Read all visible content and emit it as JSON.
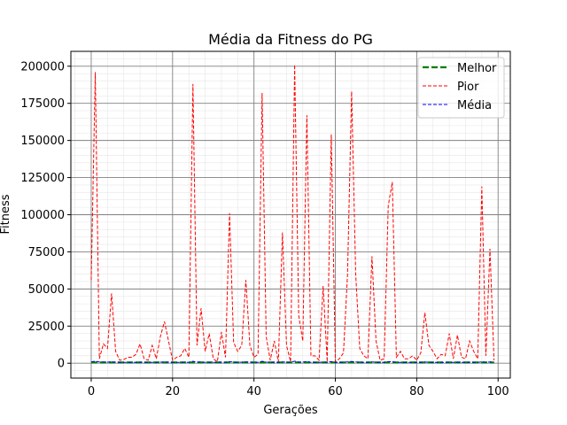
{
  "chart_data": {
    "type": "line",
    "title": "Média da Fitness do PG",
    "xlabel": "Gerações",
    "ylabel": "Fitness",
    "xlim": [
      -5,
      103
    ],
    "ylim": [
      -10000,
      210000
    ],
    "grid": true,
    "minor_grid": true,
    "legend_position": "top-right",
    "x_ticks": [
      0,
      20,
      40,
      60,
      80,
      100
    ],
    "y_ticks": [
      0,
      25000,
      50000,
      75000,
      100000,
      125000,
      150000,
      175000,
      200000
    ],
    "x": [
      0,
      1,
      2,
      3,
      4,
      5,
      6,
      7,
      8,
      9,
      10,
      11,
      12,
      13,
      14,
      15,
      16,
      17,
      18,
      19,
      20,
      21,
      22,
      23,
      24,
      25,
      26,
      27,
      28,
      29,
      30,
      31,
      32,
      33,
      34,
      35,
      36,
      37,
      38,
      39,
      40,
      41,
      42,
      43,
      44,
      45,
      46,
      47,
      48,
      49,
      50,
      51,
      52,
      53,
      54,
      55,
      56,
      57,
      58,
      59,
      60,
      61,
      62,
      63,
      64,
      65,
      66,
      67,
      68,
      69,
      70,
      71,
      72,
      73,
      74,
      75,
      76,
      77,
      78,
      79,
      80,
      81,
      82,
      83,
      84,
      85,
      86,
      87,
      88,
      89,
      90,
      91,
      92,
      93,
      94,
      95,
      96,
      97,
      98,
      99
    ],
    "series": [
      {
        "name": "Melhor",
        "color": "#008000",
        "style": "dashed-thick",
        "values": [
          500,
          500,
          500,
          500,
          500,
          500,
          500,
          500,
          500,
          500,
          500,
          500,
          500,
          500,
          500,
          500,
          500,
          500,
          500,
          500,
          500,
          500,
          500,
          500,
          500,
          500,
          500,
          500,
          500,
          500,
          500,
          500,
          500,
          500,
          500,
          500,
          500,
          500,
          500,
          500,
          500,
          500,
          500,
          500,
          500,
          500,
          500,
          500,
          500,
          500,
          500,
          500,
          500,
          500,
          500,
          500,
          500,
          500,
          500,
          500,
          500,
          500,
          500,
          500,
          500,
          500,
          500,
          500,
          500,
          500,
          500,
          500,
          500,
          500,
          500,
          500,
          500,
          500,
          500,
          500,
          500,
          500,
          500,
          500,
          500,
          500,
          500,
          500,
          500,
          500,
          500,
          500,
          500,
          500,
          500,
          500,
          500,
          500,
          500,
          500
        ]
      },
      {
        "name": "Pior",
        "color": "#ff0000",
        "style": "dashed",
        "values": [
          56000,
          196000,
          3000,
          13000,
          10000,
          47000,
          8000,
          2000,
          2500,
          4000,
          4000,
          6000,
          13000,
          3000,
          2000,
          12000,
          3000,
          18000,
          28000,
          15000,
          2000,
          4000,
          5000,
          10000,
          4000,
          188000,
          12000,
          37000,
          8000,
          20000,
          3000,
          1000,
          21000,
          4000,
          101000,
          14000,
          8000,
          12000,
          56000,
          12000,
          4000,
          6000,
          182000,
          18000,
          2000,
          15000,
          1000,
          88000,
          12000,
          1000,
          201000,
          32000,
          15000,
          167000,
          5000,
          5000,
          2000,
          52000,
          1000,
          154000,
          1000,
          3000,
          7000,
          60000,
          183000,
          60000,
          10000,
          5000,
          3000,
          72000,
          15000,
          2000,
          3000,
          106000,
          122000,
          4000,
          8000,
          3000,
          3000,
          5000,
          2000,
          7000,
          34000,
          12000,
          8000,
          3000,
          6000,
          5000,
          20000,
          3000,
          19000,
          4000,
          3000,
          15000,
          8000,
          3000,
          119000,
          5000,
          77000,
          2000
        ]
      },
      {
        "name": "Média",
        "color": "#0000ff",
        "style": "dashed",
        "values": [
          900,
          1400,
          800,
          800,
          700,
          900,
          700,
          600,
          600,
          600,
          600,
          600,
          700,
          600,
          600,
          600,
          600,
          700,
          800,
          700,
          600,
          600,
          600,
          700,
          600,
          1300,
          700,
          900,
          600,
          700,
          600,
          600,
          700,
          600,
          1100,
          700,
          600,
          700,
          900,
          700,
          600,
          600,
          1300,
          700,
          600,
          700,
          600,
          900,
          700,
          600,
          1400,
          800,
          700,
          1200,
          600,
          600,
          600,
          800,
          600,
          1100,
          600,
          600,
          600,
          900,
          1200,
          900,
          700,
          600,
          600,
          900,
          700,
          600,
          600,
          1000,
          1100,
          600,
          600,
          600,
          600,
          600,
          600,
          600,
          800,
          700,
          600,
          600,
          600,
          600,
          700,
          600,
          700,
          600,
          600,
          700,
          600,
          600,
          1000,
          600,
          900,
          600
        ]
      }
    ]
  }
}
